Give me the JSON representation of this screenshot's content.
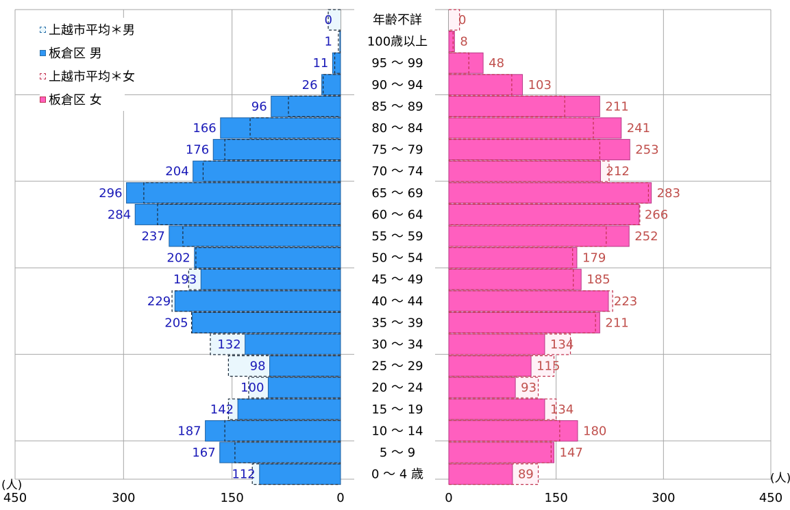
{
  "legend": {
    "items": [
      {
        "label": "上越市平均＊男",
        "color": "#2a6fa8",
        "style": "dashed",
        "fill": "#eaf7fd"
      },
      {
        "label": "板倉区 男",
        "color": "#2f97f5",
        "style": "solid",
        "fill": "#2f97f5"
      },
      {
        "label": "上越市平均＊女",
        "color": "#c0304d",
        "style": "dashed",
        "fill": "#fff2f7"
      },
      {
        "label": "板倉区 女",
        "color": "#ff5fbf",
        "style": "solid",
        "fill": "#ff5fbf"
      }
    ]
  },
  "units": {
    "left": "(人)",
    "right": "(人)"
  },
  "chart_data": {
    "type": "bar",
    "subtype": "population-pyramid",
    "categories": [
      "年齢不詳",
      "100歳以上",
      "95 〜 99",
      "90 〜 94",
      "85 〜 89",
      "80 〜 84",
      "75 〜 79",
      "70 〜 74",
      "65 〜 69",
      "60 〜 64",
      "55 〜 59",
      "50 〜 54",
      "45 〜 49",
      "40 〜 44",
      "35 〜 39",
      "30 〜 34",
      "25 〜 29",
      "20 〜 24",
      "15 〜 19",
      "10 〜 14",
      "5 〜 9",
      "0 〜 4 歳"
    ],
    "series": [
      {
        "name": "板倉区 男",
        "side": "left",
        "color": "#2f97f5",
        "values": [
          0,
          1,
          11,
          26,
          96,
          166,
          176,
          204,
          296,
          284,
          237,
          202,
          193,
          229,
          205,
          132,
          98,
          100,
          142,
          187,
          167,
          112
        ]
      },
      {
        "name": "上越市平均＊男",
        "side": "left",
        "color": "#2a6fa8",
        "style": "dashed",
        "values": [
          17,
          3,
          8,
          24,
          72,
          125,
          160,
          190,
          272,
          253,
          218,
          200,
          210,
          233,
          206,
          180,
          155,
          127,
          155,
          160,
          146,
          122
        ]
      },
      {
        "name": "板倉区 女",
        "side": "right",
        "color": "#ff5fbf",
        "values": [
          0,
          8,
          48,
          103,
          211,
          241,
          253,
          212,
          283,
          266,
          252,
          179,
          185,
          223,
          211,
          134,
          115,
          93,
          134,
          180,
          147,
          89
        ]
      },
      {
        "name": "上越市平均＊女",
        "side": "right",
        "color": "#c0304d",
        "style": "dashed",
        "values": [
          15,
          6,
          28,
          88,
          162,
          202,
          211,
          224,
          279,
          267,
          220,
          173,
          174,
          229,
          205,
          170,
          147,
          125,
          150,
          155,
          143,
          125
        ]
      }
    ],
    "left_axis": {
      "ticks": [
        450,
        300,
        150,
        0
      ],
      "range": [
        0,
        450
      ],
      "direction": "reversed"
    },
    "right_axis": {
      "ticks": [
        0,
        150,
        300,
        450
      ],
      "range": [
        0,
        450
      ]
    },
    "grid": true,
    "legend_position": "top-left"
  }
}
